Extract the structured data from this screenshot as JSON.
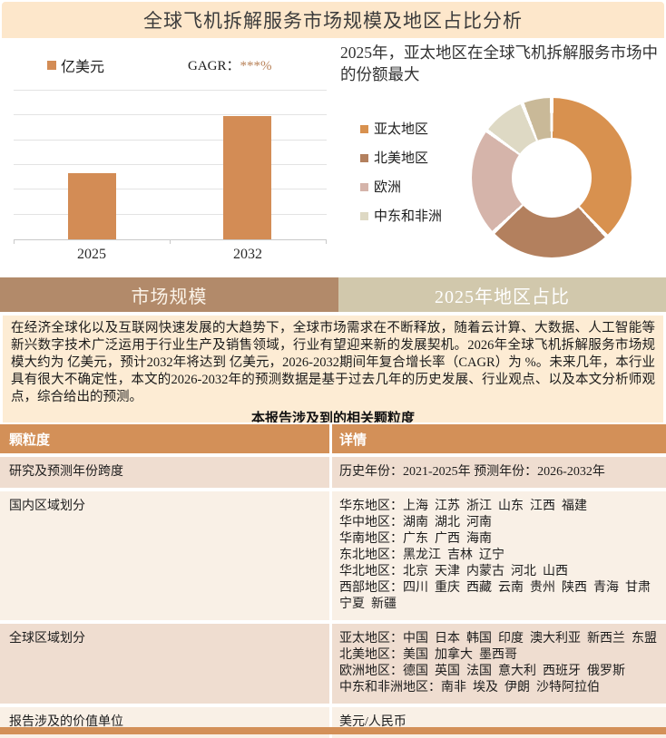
{
  "page_title": "全球飞机拆解服务市场规模及地区占比分析",
  "bar_section": {
    "legend_label": "亿美元",
    "cagr_label": "GAGR：",
    "cagr_value": "***%"
  },
  "pie_section": {
    "heading": "2025年，亚太地区在全球飞机拆解服务市场中的份额最大",
    "legend": [
      {
        "label": "亚太地区",
        "color": "#d8914f"
      },
      {
        "label": "北美地区",
        "color": "#b3805e"
      },
      {
        "label": "欧洲",
        "color": "#d5b4aa"
      },
      {
        "label": "中东和非洲",
        "color": "#ded9c4"
      }
    ]
  },
  "tabs": [
    {
      "label": "市场规模"
    },
    {
      "label": "2025年地区占比"
    }
  ],
  "summary": {
    "text": "在经济全球化以及互联网快速发展的大趋势下，全球市场需求在不断释放，随着云计算、大数据、人工智能等新兴数字技术广泛运用于行业生产及销售领域，行业有望迎来新的发展契机。2026年全球飞机拆解服务市场规模大约为 亿美元，预计2032年将达到 亿美元，2026-2032期间年复合增长率（CAGR）为 %。未来几年，本行业具有很大不确定性，本文的2026-2032年的预测数据是基于过去几年的历史发展、行业观点、以及本文分析师观点，综合给出的预测。",
    "table_title": "本报告涉及到的相关颗粒度"
  },
  "table": {
    "headers": [
      "颗粒度",
      "详情"
    ],
    "rows": [
      {
        "label": "研究及预测年份跨度",
        "details": [
          "历史年份：2021-2025年 预测年份：2026-2032年"
        ]
      },
      {
        "label": "国内区域划分",
        "details": [
          "华东地区：上海  江苏  浙江  山东  江西  福建",
          "华中地区：湖南  湖北  河南",
          "华南地区：广东  广西  海南",
          "东北地区：黑龙江  吉林  辽宁",
          "华北地区：北京  天津  内蒙古  河北  山西",
          "西部地区：四川  重庆  西藏  云南  贵州  陕西  青海  甘肃 宁夏  新疆"
        ]
      },
      {
        "label": "全球区域划分",
        "details": [
          "亚太地区：中国  日本  韩国  印度  澳大利亚  新西兰  东盟",
          "北美地区：美国  加拿大  墨西哥",
          "欧洲地区：德国  英国  法国  意大利  西班牙  俄罗斯",
          "中东和非洲地区：南非  埃及  伊朗  沙特阿拉伯"
        ]
      },
      {
        "label": "报告涉及的价值单位",
        "details": [
          "美元/人民币"
        ]
      }
    ]
  },
  "colors": {
    "title_bar_bg": "#fde7cb",
    "bar_fill": "#d38c55",
    "tab_left_bg": "#b28a6a",
    "tab_right_bg": "#d1c8ac",
    "summary_bg": "#fdecd4",
    "table_header_bg": "#d39058",
    "row_pink": "#efddd0",
    "row_light": "#f9f0e6",
    "footer_bg": "#d39058",
    "cagr_stars": "#b9835a"
  },
  "chart_data": [
    {
      "type": "bar",
      "title": "",
      "categories": [
        "2025",
        "2032"
      ],
      "values_relative": [
        0.54,
        1.0
      ],
      "values_masked": true,
      "unit_label": "亿美元",
      "annotation": "GAGR：***%",
      "bar_color": "#d38c55",
      "gridlines": 6,
      "legend_position": "top",
      "ylim": [
        0,
        1
      ]
    },
    {
      "type": "pie",
      "donut": true,
      "title": "2025年，亚太地区在全球飞机拆解服务市场中的份额最大",
      "labels": [
        "亚太地区",
        "北美地区",
        "欧洲",
        "中东和非洲",
        ""
      ],
      "values_pct": [
        38,
        25,
        22,
        9,
        6
      ],
      "colors": [
        "#d8914f",
        "#b3805e",
        "#d5b4aa",
        "#ded9c4",
        "#c9b998"
      ],
      "legend_position": "left",
      "start_angle_deg": 0
    }
  ]
}
